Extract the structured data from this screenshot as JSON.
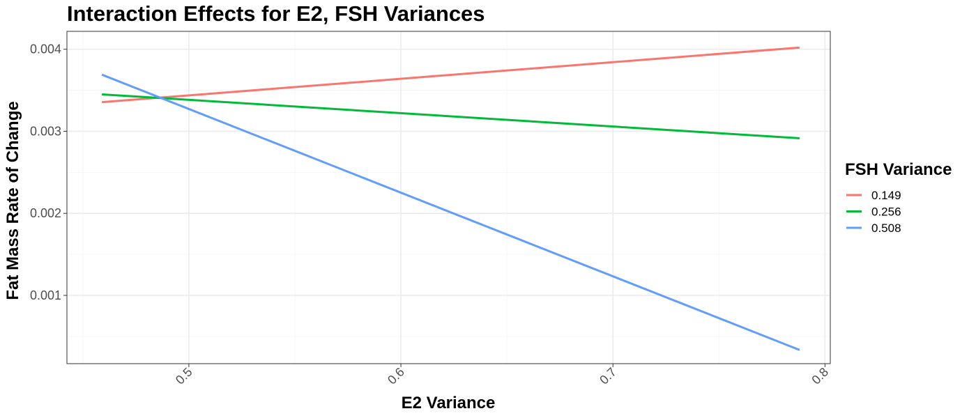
{
  "chart_data": {
    "type": "line",
    "title": "Interaction Effects for E2, FSH Variances",
    "xlabel": "E2 Variance",
    "ylabel": "Fat Mass Rate of Change",
    "xlim": [
      0.4425,
      0.8025
    ],
    "ylim": [
      0.000168,
      0.004218
    ],
    "x_ticks": [
      0.5,
      0.6,
      0.7,
      0.8
    ],
    "x_tick_labels": [
      "0.5",
      "0.6",
      "0.7",
      "0.8"
    ],
    "y_ticks": [
      0.001,
      0.002,
      0.003,
      0.004
    ],
    "y_tick_labels": [
      "0.001",
      "0.002",
      "0.003",
      "0.004"
    ],
    "grid": true,
    "legend": {
      "title": "FSH Variance",
      "position": "right"
    },
    "series": [
      {
        "name": "0.149",
        "color": "#F8766D",
        "x": [
          0.459,
          0.788
        ],
        "y": [
          0.003355,
          0.00402
        ]
      },
      {
        "name": "0.256",
        "color": "#00BA38",
        "x": [
          0.459,
          0.788
        ],
        "y": [
          0.00345,
          0.002915
        ]
      },
      {
        "name": "0.508",
        "color": "#619CFF",
        "x": [
          0.459,
          0.788
        ],
        "y": [
          0.00369,
          0.000335
        ]
      }
    ]
  }
}
